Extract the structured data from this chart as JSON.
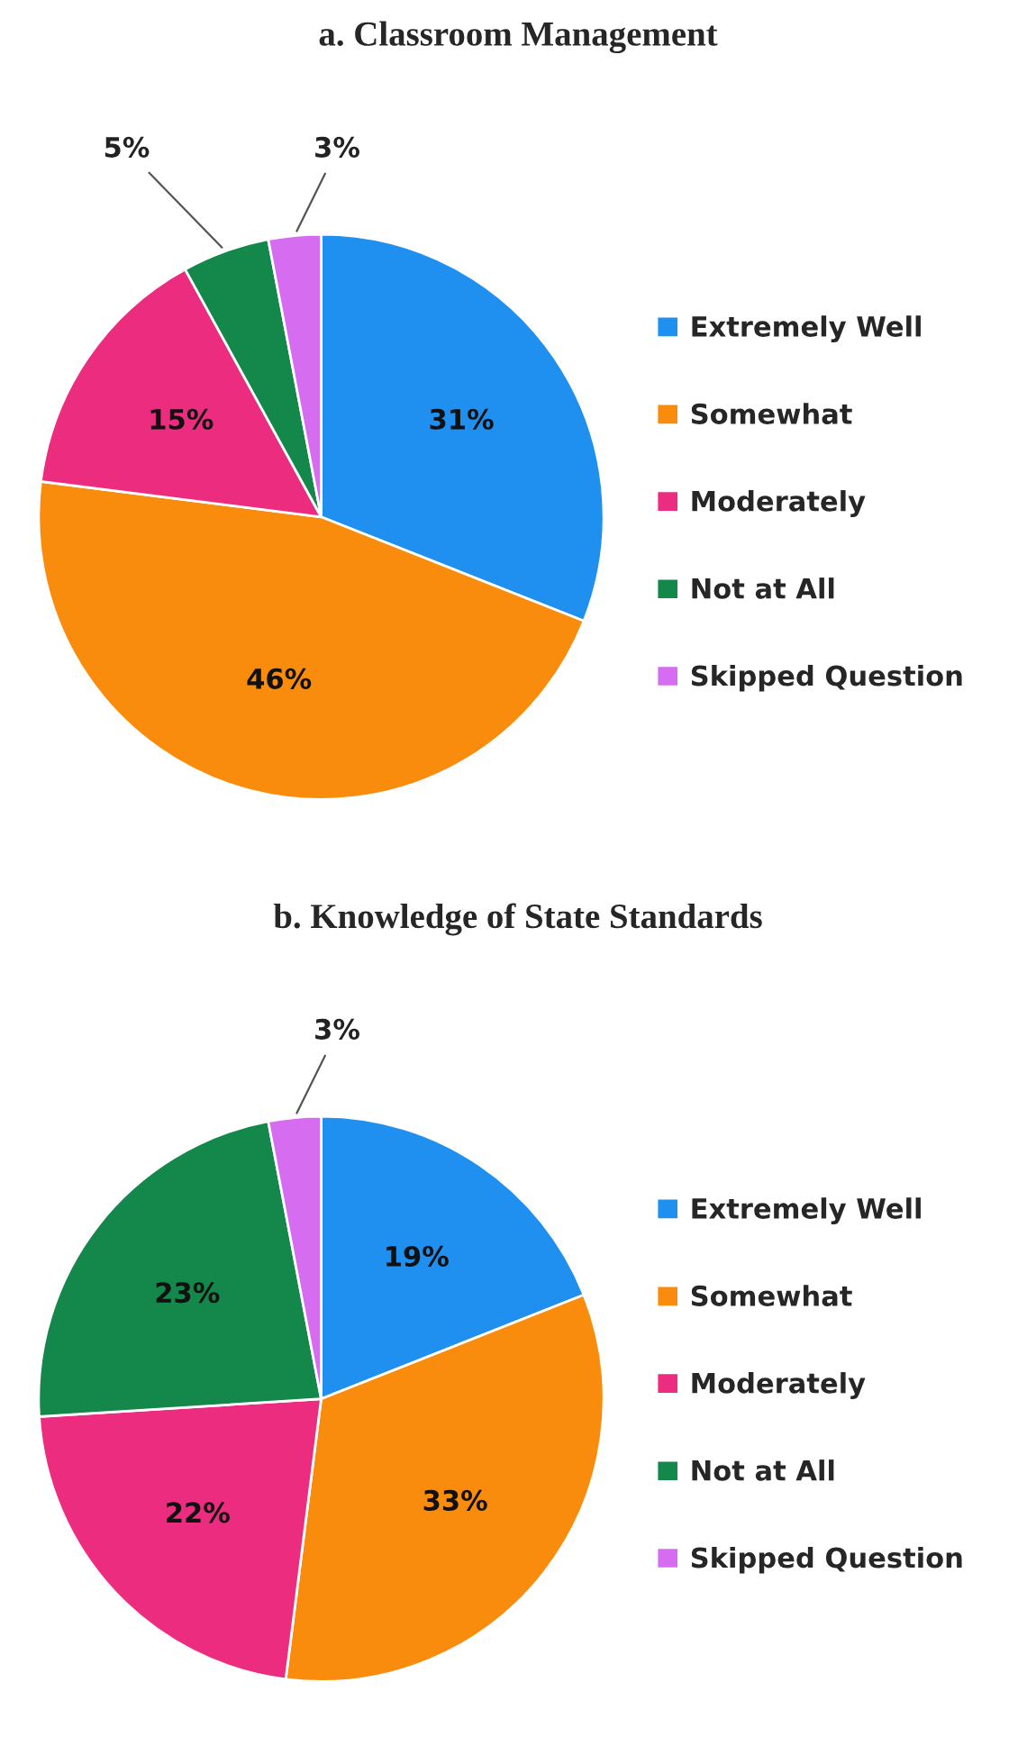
{
  "chart_data": [
    {
      "type": "pie",
      "title": "a. Classroom Management",
      "categories": [
        "Extremely Well",
        "Somewhat",
        "Moderately",
        "Not at All",
        "Skipped Question"
      ],
      "values": [
        31,
        46,
        15,
        5,
        3
      ],
      "value_labels": [
        "31%",
        "46%",
        "15%",
        "5%",
        "3%"
      ],
      "colors": [
        "#1f8ff0",
        "#f98c0c",
        "#ec2c7f",
        "#14874a",
        "#d66cf0"
      ],
      "legend": "right"
    },
    {
      "type": "pie",
      "title": "b. Knowledge of State Standards",
      "categories": [
        "Extremely Well",
        "Somewhat",
        "Moderately",
        "Not at All",
        "Skipped Question"
      ],
      "values": [
        19,
        33,
        22,
        23,
        3
      ],
      "value_labels": [
        "19%",
        "33%",
        "22%",
        "23%",
        "3%"
      ],
      "colors": [
        "#1f8ff0",
        "#f98c0c",
        "#ec2c7f",
        "#14874a",
        "#d66cf0"
      ],
      "legend": "right"
    }
  ]
}
